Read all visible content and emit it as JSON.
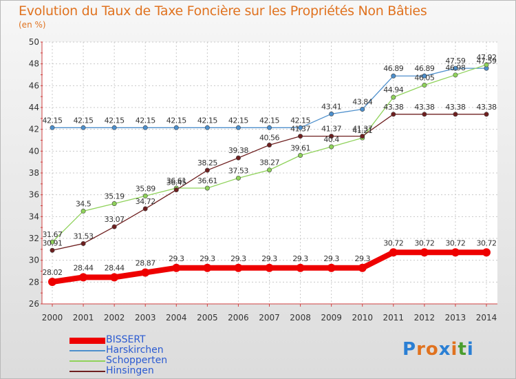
{
  "header": {
    "title": "Evolution du Taux de Taxe Foncière sur les Propriétés Non Bâties",
    "unit": "(en %)"
  },
  "logo": {
    "text": "Proxiti",
    "colors": [
      "#2a7fd4",
      "#e0721f",
      "#e0721f",
      "#2a7fd4",
      "#e0721f",
      "#4a9d2e",
      "#2a7fd4"
    ]
  },
  "chart_data": {
    "type": "line",
    "title": "Evolution du Taux de Taxe Foncière sur les Propriétés Non Bâties",
    "ylabel": "(en %)",
    "xlabel": "",
    "x": [
      "2000",
      "2001",
      "2002",
      "2003",
      "2004",
      "2005",
      "2006",
      "2007",
      "2008",
      "2009",
      "2010",
      "2011",
      "2012",
      "2013",
      "2014"
    ],
    "ylim": [
      26,
      50
    ],
    "yticks": [
      26,
      28,
      30,
      32,
      34,
      36,
      38,
      40,
      42,
      44,
      46,
      48,
      50
    ],
    "grid": true,
    "legend": "bottom-left",
    "series": [
      {
        "name": "BISSERT",
        "color": "#ee0000",
        "values": [
          28.02,
          28.44,
          28.44,
          28.87,
          29.3,
          29.3,
          29.3,
          29.3,
          29.3,
          29.3,
          29.3,
          30.72,
          30.72,
          30.72,
          30.72
        ],
        "labels": [
          "28.02",
          "28.44",
          "28.44",
          "28.87",
          "29.3",
          "29.3",
          "29.3",
          "29.3",
          "29.3",
          "29.3",
          "29.3",
          "30.72",
          "30.72",
          "30.72",
          "30.72"
        ]
      },
      {
        "name": "Harskirchen",
        "color": "#4d8fcc",
        "values": [
          42.15,
          42.15,
          42.15,
          42.15,
          42.15,
          42.15,
          42.15,
          42.15,
          42.15,
          43.41,
          43.84,
          46.89,
          46.89,
          47.59,
          47.59
        ],
        "labels": [
          "42.15",
          "42.15",
          "42.15",
          "42.15",
          "42.15",
          "42.15",
          "42.15",
          "42.15",
          "42.15",
          "43.41",
          "43.84",
          "46.89",
          "46.89",
          "47.59",
          "47.59"
        ]
      },
      {
        "name": "Schopperten",
        "color": "#8fd25a",
        "values": [
          31.67,
          34.5,
          35.19,
          35.89,
          36.61,
          36.61,
          37.53,
          38.27,
          39.61,
          40.4,
          41.21,
          44.94,
          46.05,
          46.98,
          47.92
        ],
        "labels": [
          "31.67",
          "34.5",
          "35.19",
          "35.89",
          "36.61",
          "36.61",
          "37.53",
          "38.27",
          "39.61",
          "40.4",
          "41.21",
          "44.94",
          "46.05",
          "46.98",
          "47.92"
        ]
      },
      {
        "name": "Hinsingen",
        "color": "#6e1f1f",
        "values": [
          30.91,
          31.53,
          33.07,
          34.72,
          36.45,
          38.25,
          39.38,
          40.56,
          41.37,
          41.37,
          41.37,
          43.38,
          43.38,
          43.38,
          43.38
        ],
        "labels": [
          "30.91",
          "31.53",
          "33.07",
          "34.72",
          "36.45",
          "38.25",
          "39.38",
          "40.56",
          "41.37",
          "41.37",
          "41.37",
          "43.38",
          "43.38",
          "43.38",
          "43.38"
        ]
      }
    ]
  }
}
